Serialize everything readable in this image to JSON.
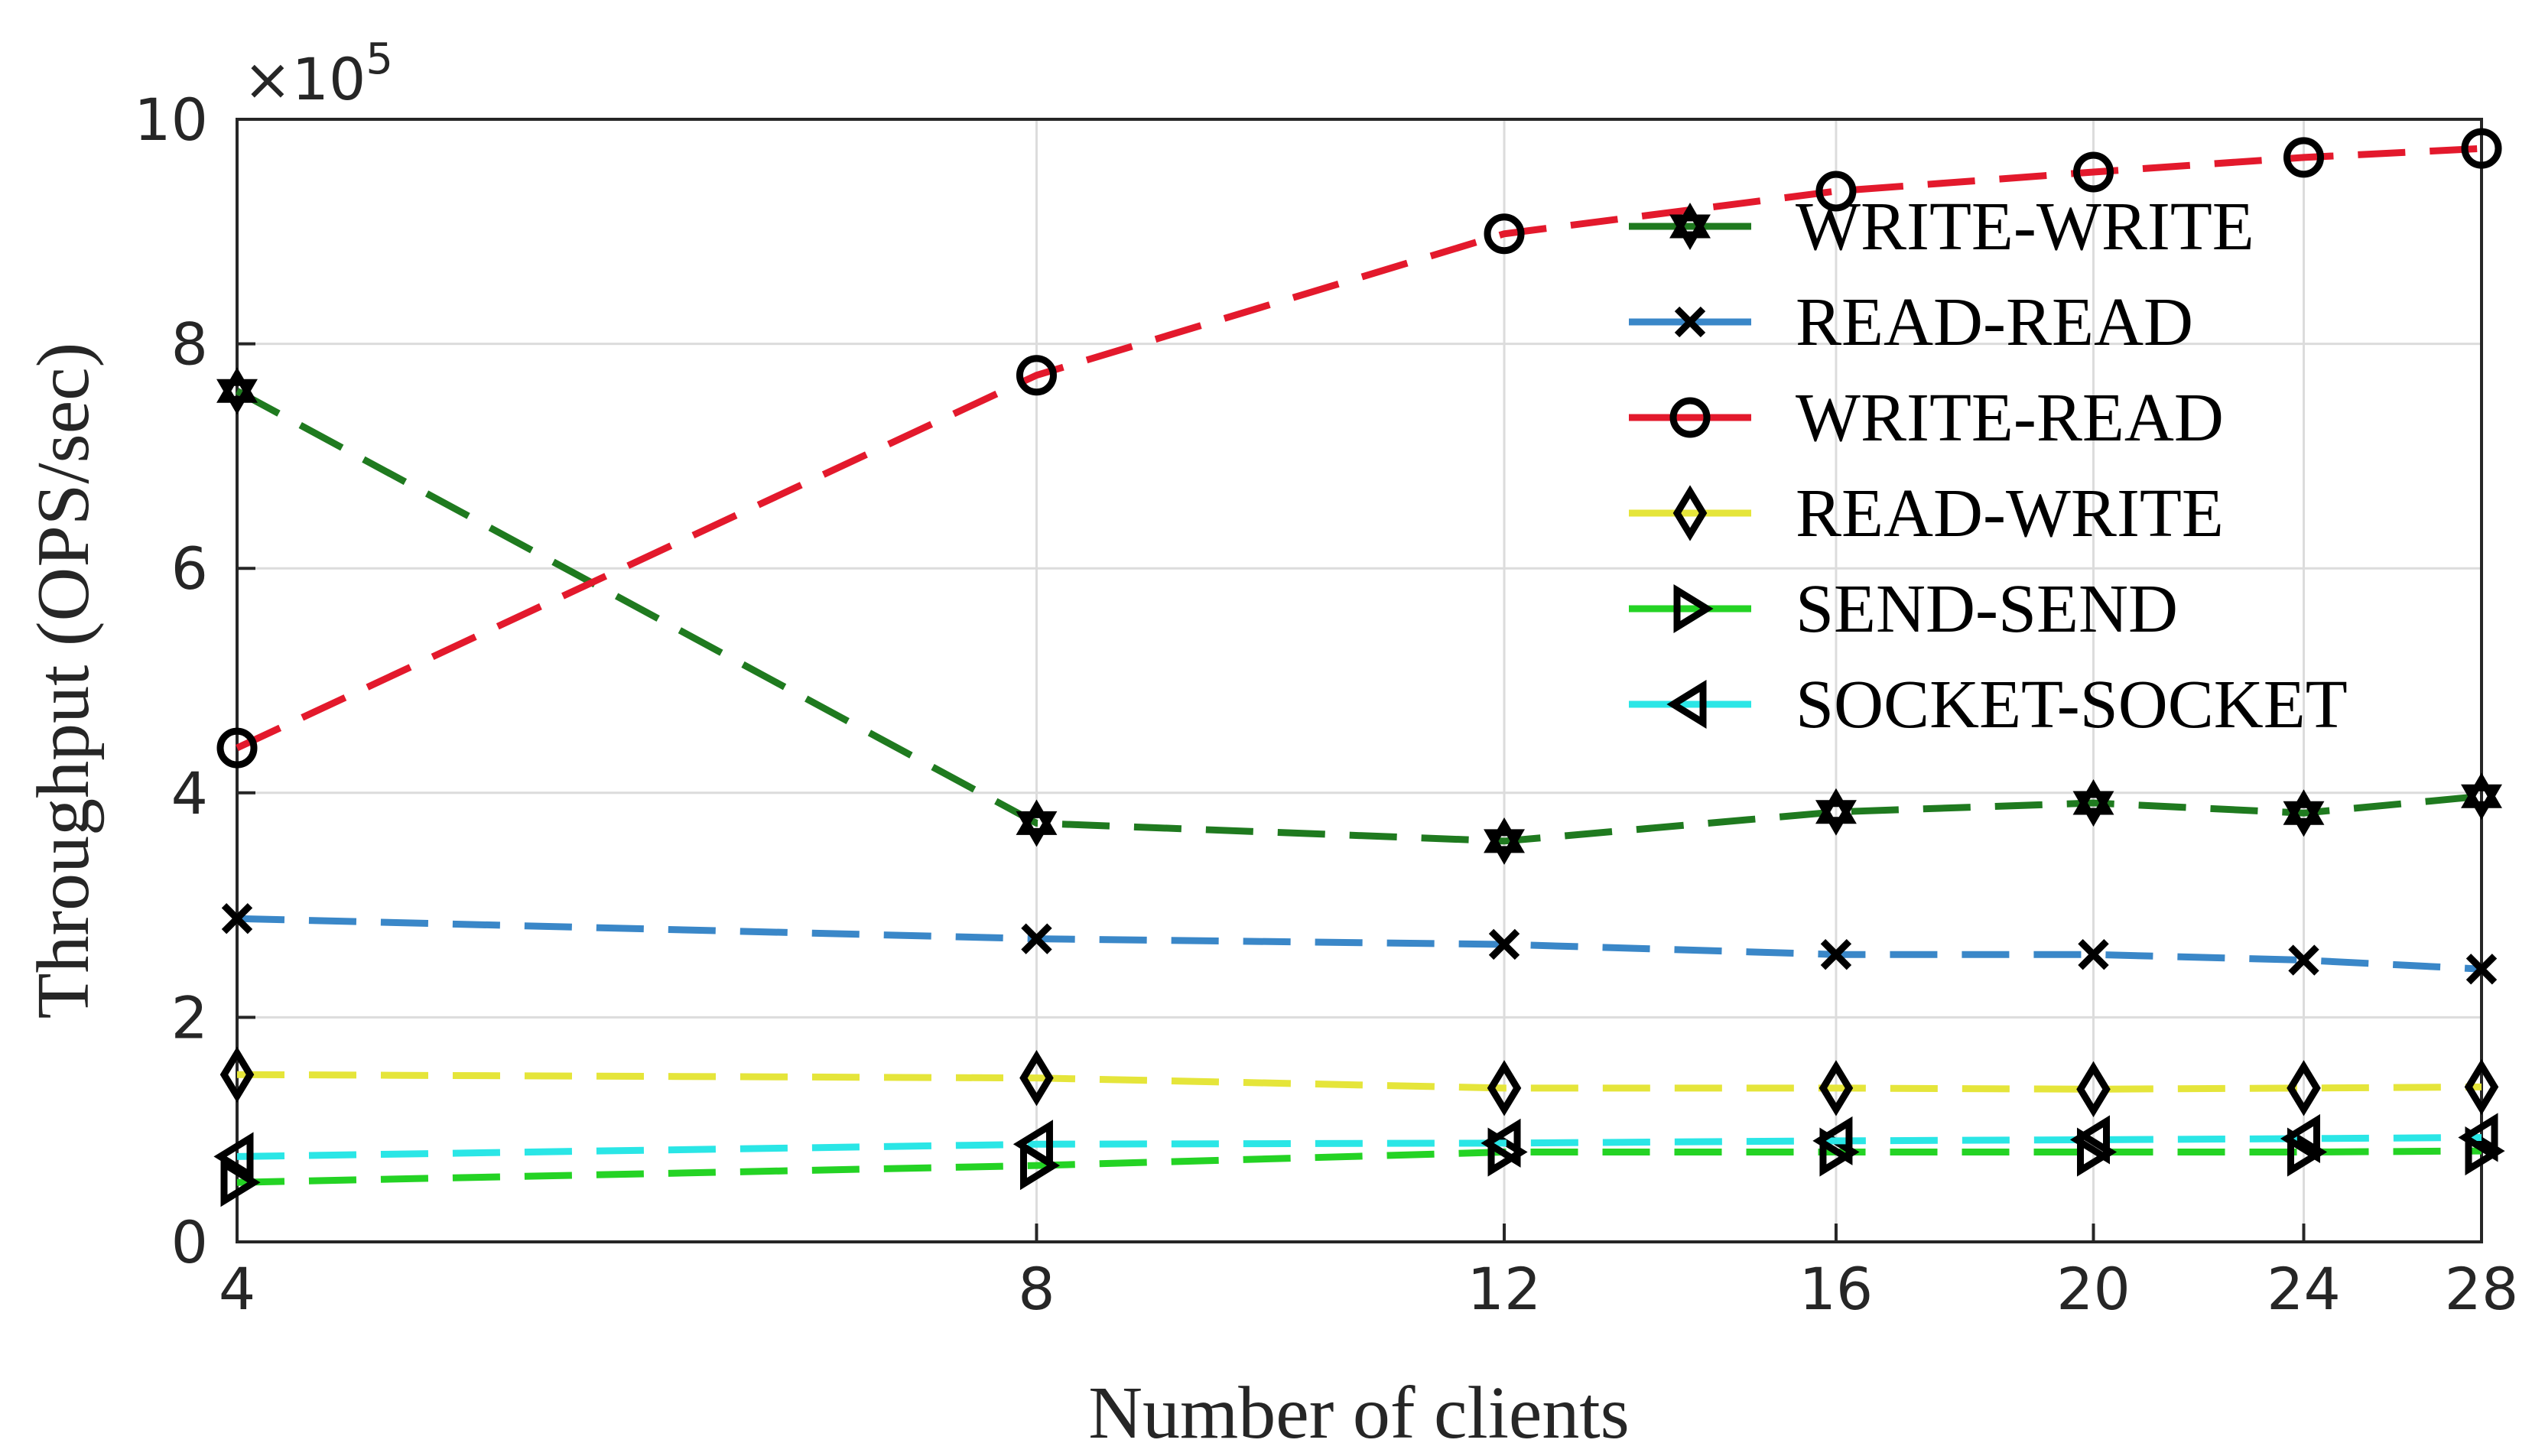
{
  "chart_data": {
    "type": "line",
    "xlabel": "Number of clients",
    "ylabel": "Throughput (OPS/sec)",
    "y_exponent_label": "×10",
    "y_exponent_power": "5",
    "x": [
      4,
      8,
      12,
      16,
      20,
      24,
      28
    ],
    "x_ticks": [
      "4",
      "8",
      "12",
      "16",
      "20",
      "24",
      "28"
    ],
    "y_ticks": [
      "0",
      "2",
      "4",
      "6",
      "8",
      "10"
    ],
    "xlim": [
      4,
      28
    ],
    "ylim": [
      0,
      10
    ],
    "x_scale": "log",
    "y_unit_multiplier": 100000,
    "grid": true,
    "legend_position": "top-right",
    "series": [
      {
        "name": "WRITE-WRITE",
        "color": "#1f7a1f",
        "marker": "star-icon",
        "values": [
          7.58,
          3.73,
          3.57,
          3.83,
          3.91,
          3.82,
          3.97
        ]
      },
      {
        "name": "READ-READ",
        "color": "#3a87c8",
        "marker": "x-mark-icon",
        "values": [
          2.88,
          2.7,
          2.65,
          2.56,
          2.56,
          2.51,
          2.43
        ]
      },
      {
        "name": "WRITE-READ",
        "color": "#e3192c",
        "marker": "circle-icon",
        "values": [
          4.4,
          7.72,
          8.98,
          9.36,
          9.53,
          9.66,
          9.74
        ]
      },
      {
        "name": "READ-WRITE",
        "color": "#e5e53a",
        "marker": "diamond-icon",
        "values": [
          1.49,
          1.46,
          1.37,
          1.37,
          1.36,
          1.37,
          1.38
        ]
      },
      {
        "name": "SEND-SEND",
        "color": "#24d324",
        "marker": "triangle-right-icon",
        "values": [
          0.53,
          0.68,
          0.8,
          0.8,
          0.8,
          0.8,
          0.81
        ]
      },
      {
        "name": "SOCKET-SOCKET",
        "color": "#2ae6e6",
        "marker": "triangle-left-icon",
        "values": [
          0.76,
          0.87,
          0.88,
          0.9,
          0.91,
          0.92,
          0.93
        ]
      }
    ]
  }
}
